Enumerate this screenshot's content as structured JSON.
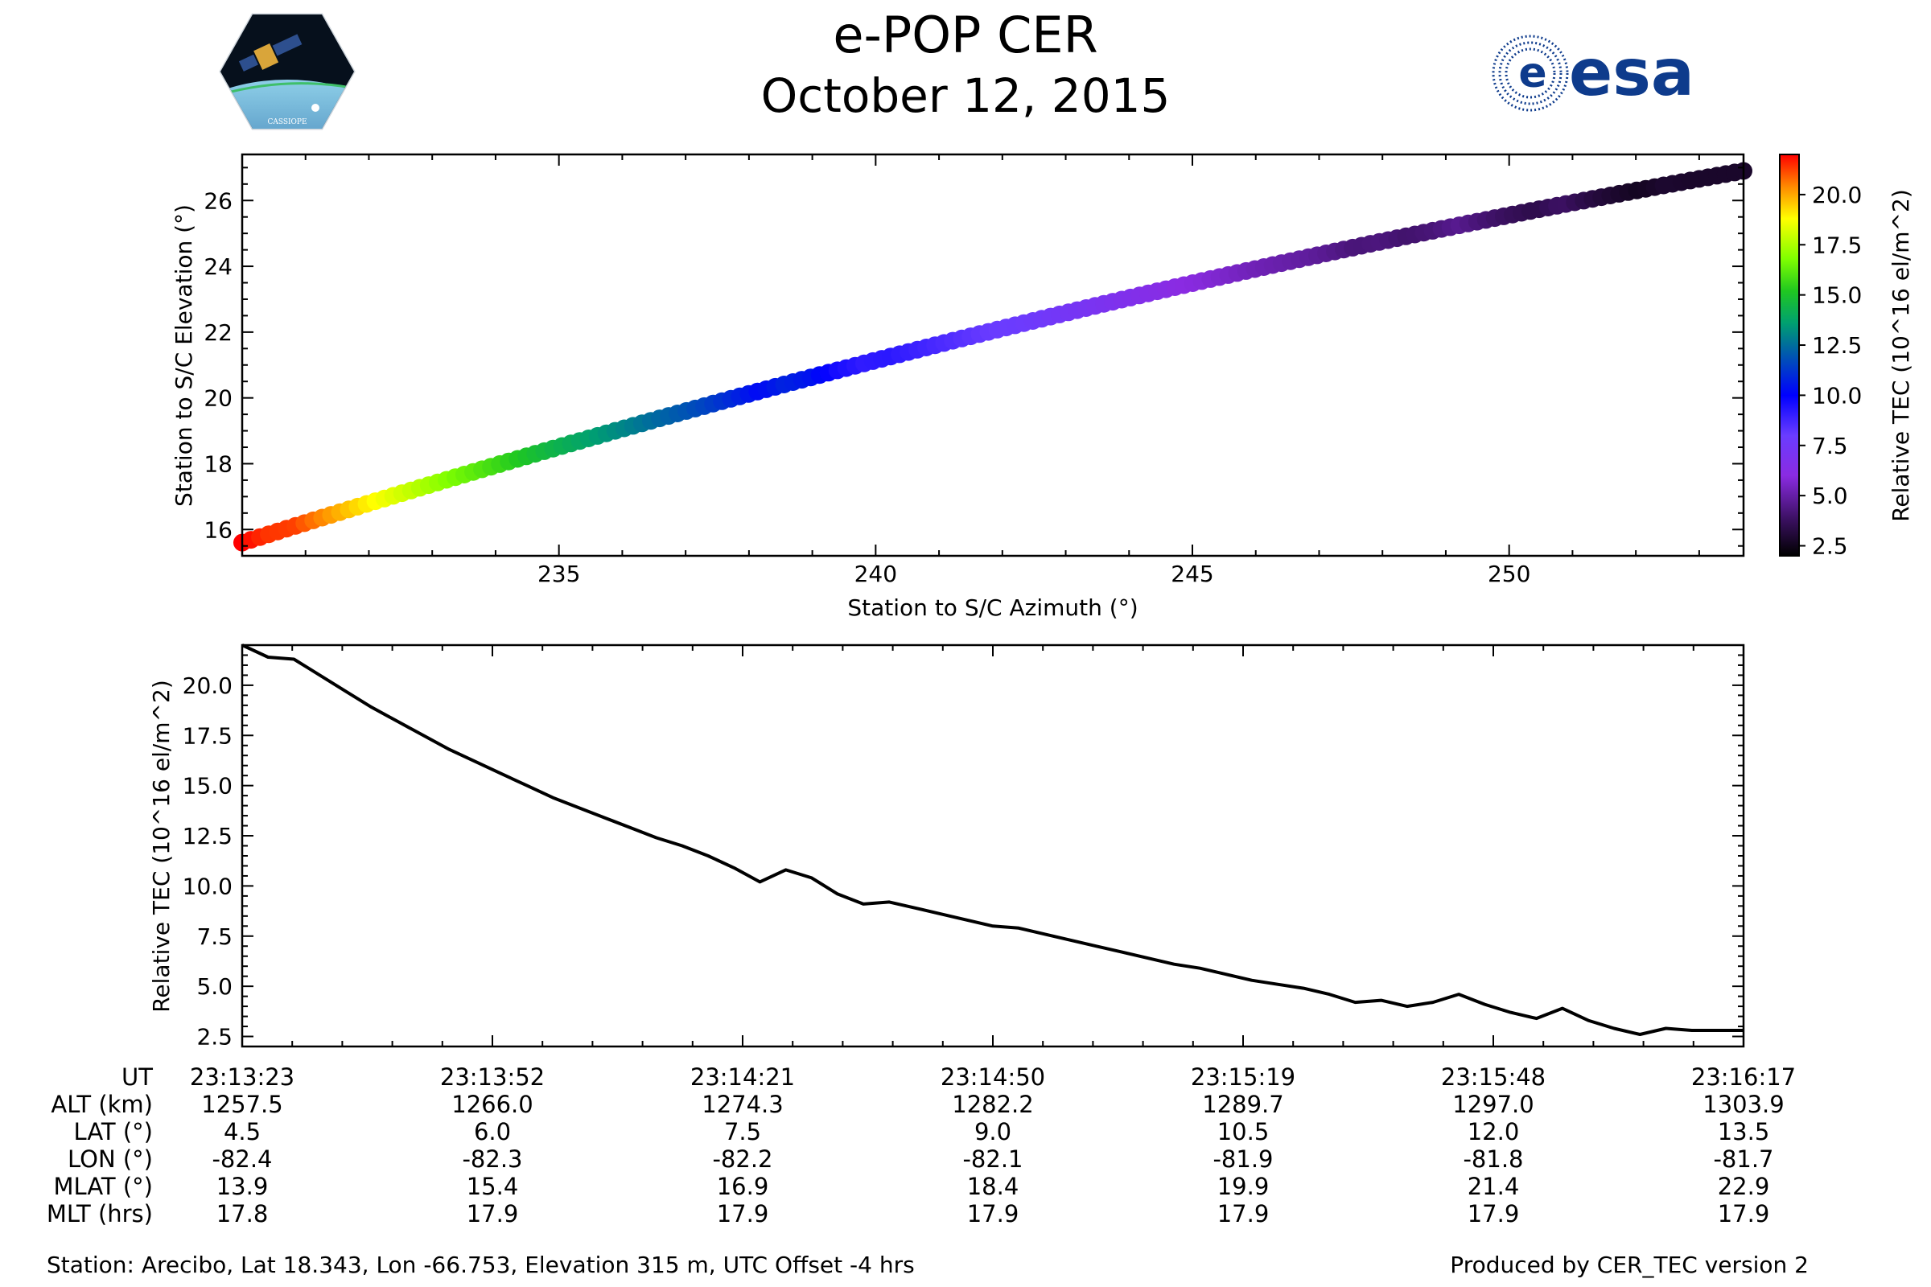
{
  "header": {
    "title": "e-POP CER",
    "date": "October 12, 2015",
    "logo_left_text": "CASSIOPE",
    "logo_right_text": "esa"
  },
  "colors": {
    "esa_blue": "#0e3b8c",
    "line": "#000000",
    "axes": "#000000"
  },
  "chart_data": [
    {
      "type": "scatter",
      "name": "elevation-vs-azimuth",
      "xlabel": "Station to S/C Azimuth (°)",
      "ylabel": "Station to S/C Elevation (°)",
      "xlim": [
        230.0,
        253.7
      ],
      "ylim": [
        15.2,
        27.4
      ],
      "xticks": [
        235,
        240,
        245,
        250
      ],
      "xtick_labels": [
        "235",
        "240",
        "245",
        "250"
      ],
      "yticks": [
        16,
        18,
        20,
        22,
        24,
        26
      ],
      "ytick_labels": [
        "16",
        "18",
        "20",
        "22",
        "24",
        "26"
      ],
      "colormap": "gist_ncar-like (black-purple-blue-green-yellow-red)",
      "color_range": [
        2.0,
        22.0
      ],
      "colorbar_label": "Relative TEC (10^16 el/m^2)",
      "colorbar_ticks": [
        2.5,
        5.0,
        7.5,
        10.0,
        12.5,
        15.0,
        17.5,
        20.0
      ],
      "colorbar_tick_labels": [
        "2.5",
        "5.0",
        "7.5",
        "10.0",
        "12.5",
        "15.0",
        "17.5",
        "20.0"
      ],
      "points_from": "tec-series",
      "azimuth_start": 230.0,
      "azimuth_end": 253.7,
      "elevation_start": 15.6,
      "elevation_end": 26.9
    },
    {
      "type": "line",
      "name": "tec-vs-time",
      "ylabel": "Relative TEC (10^16 el/m^2)",
      "xlim_seconds": [
        0,
        174
      ],
      "ylim": [
        2.0,
        22.0
      ],
      "yticks": [
        2.5,
        5.0,
        7.5,
        10.0,
        12.5,
        15.0,
        17.5,
        20.0
      ],
      "ytick_labels": [
        "2.5",
        "5.0",
        "7.5",
        "10.0",
        "12.5",
        "15.0",
        "17.5",
        "20.0"
      ],
      "x_seconds": [
        0,
        3,
        6,
        9,
        12,
        15,
        18,
        21,
        24,
        27,
        30,
        33,
        36,
        39,
        42,
        45,
        48,
        51,
        54,
        57,
        60,
        63,
        66,
        69,
        72,
        75,
        78,
        81,
        84,
        87,
        90,
        93,
        96,
        99,
        102,
        105,
        108,
        111,
        114,
        117,
        120,
        123,
        126,
        129,
        132,
        135,
        138,
        141,
        144,
        147,
        150,
        153,
        156,
        159,
        162,
        165,
        168,
        171,
        174
      ],
      "tec": [
        22.0,
        21.4,
        21.3,
        20.5,
        19.7,
        18.9,
        18.2,
        17.5,
        16.8,
        16.2,
        15.6,
        15.0,
        14.4,
        13.9,
        13.4,
        12.9,
        12.4,
        12.0,
        11.5,
        10.9,
        10.2,
        10.8,
        10.4,
        9.6,
        9.1,
        9.2,
        8.9,
        8.6,
        8.3,
        8.0,
        7.9,
        7.6,
        7.3,
        7.0,
        6.7,
        6.4,
        6.1,
        5.9,
        5.6,
        5.3,
        5.1,
        4.9,
        4.6,
        4.2,
        4.3,
        4.0,
        4.2,
        4.6,
        4.1,
        3.7,
        3.4,
        3.9,
        3.3,
        2.9,
        2.6,
        2.9,
        2.8,
        2.8,
        2.8
      ]
    }
  ],
  "annotation_table": {
    "labels": [
      "UT",
      "ALT (km)",
      "LAT (°)",
      "LON (°)",
      "MLAT (°)",
      "MLT (hrs)"
    ],
    "columns": [
      {
        "ut": "23:13:23",
        "alt": "1257.5",
        "lat": "4.5",
        "lon": "-82.4",
        "mlat": "13.9",
        "mlt": "17.8"
      },
      {
        "ut": "23:13:52",
        "alt": "1266.0",
        "lat": "6.0",
        "lon": "-82.3",
        "mlat": "15.4",
        "mlt": "17.9"
      },
      {
        "ut": "23:14:21",
        "alt": "1274.3",
        "lat": "7.5",
        "lon": "-82.2",
        "mlat": "16.9",
        "mlt": "17.9"
      },
      {
        "ut": "23:14:50",
        "alt": "1282.2",
        "lat": "9.0",
        "lon": "-82.1",
        "mlat": "18.4",
        "mlt": "17.9"
      },
      {
        "ut": "23:15:19",
        "alt": "1289.7",
        "lat": "10.5",
        "lon": "-81.9",
        "mlat": "19.9",
        "mlt": "17.9"
      },
      {
        "ut": "23:15:48",
        "alt": "1297.0",
        "lat": "12.0",
        "lon": "-81.8",
        "mlat": "21.4",
        "mlt": "17.9"
      },
      {
        "ut": "23:16:17",
        "alt": "1303.9",
        "lat": "13.5",
        "lon": "-81.7",
        "mlat": "22.9",
        "mlt": "17.9"
      }
    ]
  },
  "footer": {
    "station": "Station: Arecibo, Lat 18.343, Lon -66.753, Elevation 315 m, UTC Offset -4 hrs",
    "produced_by": "Produced by CER_TEC version 2"
  }
}
